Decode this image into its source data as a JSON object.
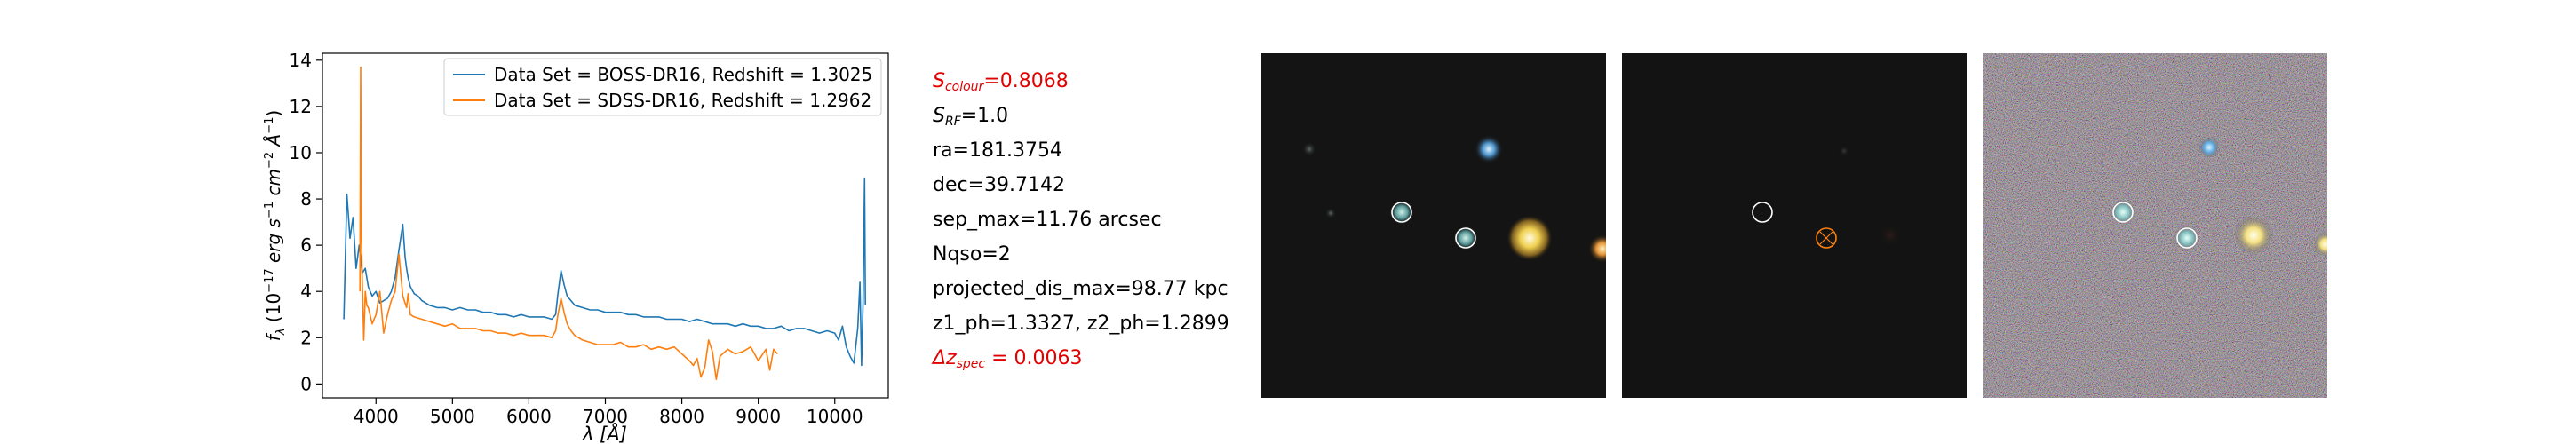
{
  "chart_data": {
    "type": "line",
    "title": "",
    "xlabel": "λ [Å]",
    "ylabel": "f_λ (10^-17 erg s^-1 cm^-2 Å^-1)",
    "xlim": [
      3300,
      10700
    ],
    "ylim": [
      -0.6,
      14.3
    ],
    "xticks": [
      4000,
      5000,
      6000,
      7000,
      8000,
      9000,
      10000
    ],
    "yticks": [
      0,
      2,
      4,
      6,
      8,
      10,
      12,
      14
    ],
    "legend_position": "top-right",
    "series": [
      {
        "name": "Data Set = BOSS-DR16, Redshift = 1.3025",
        "color": "#1f77b4",
        "x": [
          3580,
          3620,
          3660,
          3700,
          3740,
          3780,
          3820,
          3860,
          3900,
          3950,
          4000,
          4050,
          4100,
          4150,
          4200,
          4250,
          4300,
          4350,
          4380,
          4400,
          4420,
          4450,
          4500,
          4550,
          4600,
          4650,
          4700,
          4800,
          4900,
          5000,
          5100,
          5200,
          5300,
          5400,
          5500,
          5600,
          5700,
          5800,
          5900,
          6000,
          6100,
          6200,
          6300,
          6350,
          6380,
          6420,
          6460,
          6500,
          6550,
          6600,
          6700,
          6800,
          6900,
          7000,
          7100,
          7200,
          7300,
          7400,
          7500,
          7600,
          7700,
          7800,
          7900,
          8000,
          8100,
          8200,
          8300,
          8400,
          8500,
          8600,
          8700,
          8800,
          8900,
          9000,
          9100,
          9200,
          9300,
          9400,
          9500,
          9600,
          9700,
          9800,
          9900,
          10000,
          10050,
          10100,
          10150,
          10200,
          10250,
          10300,
          10330,
          10350,
          10370,
          10390,
          10400
        ],
        "y": [
          2.8,
          8.2,
          6.3,
          7.2,
          5.0,
          6.0,
          4.8,
          5.0,
          4.2,
          3.8,
          4.0,
          3.5,
          3.6,
          3.7,
          4.0,
          4.6,
          5.8,
          6.9,
          5.5,
          5.0,
          4.6,
          4.2,
          3.9,
          3.8,
          3.6,
          3.5,
          3.4,
          3.3,
          3.3,
          3.2,
          3.3,
          3.2,
          3.2,
          3.1,
          3.1,
          3.0,
          3.0,
          2.9,
          3.0,
          2.9,
          2.9,
          2.9,
          2.8,
          3.0,
          3.9,
          4.9,
          4.3,
          3.8,
          3.6,
          3.4,
          3.3,
          3.2,
          3.2,
          3.1,
          3.1,
          3.1,
          3.0,
          3.0,
          2.9,
          2.9,
          2.9,
          2.8,
          2.8,
          2.8,
          2.7,
          2.8,
          2.7,
          2.6,
          2.6,
          2.6,
          2.5,
          2.6,
          2.5,
          2.5,
          2.4,
          2.4,
          2.5,
          2.3,
          2.4,
          2.4,
          2.3,
          2.2,
          2.3,
          2.2,
          1.9,
          2.5,
          1.6,
          1.2,
          0.9,
          2.4,
          4.4,
          0.8,
          3.5,
          8.9,
          3.4
        ]
      },
      {
        "name": "Data Set = SDSS-DR16, Redshift = 1.2962",
        "color": "#ff7f0e",
        "x": [
          3790,
          3800,
          3810,
          3820,
          3840,
          3860,
          3880,
          3900,
          3950,
          4000,
          4050,
          4100,
          4150,
          4200,
          4250,
          4300,
          4350,
          4400,
          4420,
          4450,
          4500,
          4600,
          4700,
          4800,
          4900,
          5000,
          5100,
          5200,
          5300,
          5400,
          5500,
          5600,
          5700,
          5800,
          5900,
          6000,
          6100,
          6200,
          6300,
          6350,
          6380,
          6420,
          6460,
          6500,
          6550,
          6600,
          6700,
          6800,
          6900,
          7000,
          7100,
          7200,
          7300,
          7400,
          7500,
          7600,
          7700,
          7800,
          7900,
          8000,
          8100,
          8150,
          8200,
          8250,
          8300,
          8350,
          8400,
          8450,
          8500,
          8600,
          8700,
          8800,
          8900,
          9000,
          9100,
          9150,
          9200,
          9250
        ],
        "y": [
          4.0,
          13.7,
          6.5,
          4.5,
          1.9,
          4.0,
          3.4,
          3.3,
          2.6,
          3.0,
          4.0,
          2.2,
          3.0,
          3.6,
          4.0,
          5.6,
          3.8,
          3.3,
          3.9,
          3.0,
          2.9,
          2.8,
          2.7,
          2.6,
          2.5,
          2.6,
          2.4,
          2.4,
          2.4,
          2.3,
          2.3,
          2.2,
          2.2,
          2.1,
          2.2,
          2.1,
          2.1,
          2.1,
          2.0,
          2.3,
          3.0,
          3.7,
          3.1,
          2.6,
          2.3,
          2.1,
          1.9,
          1.8,
          1.7,
          1.7,
          1.7,
          1.8,
          1.6,
          1.6,
          1.7,
          1.5,
          1.6,
          1.5,
          1.6,
          1.3,
          1.0,
          0.8,
          1.1,
          0.3,
          0.7,
          1.9,
          1.4,
          0.2,
          1.2,
          1.5,
          1.3,
          1.4,
          1.6,
          1.0,
          1.5,
          0.6,
          1.5,
          1.3
        ]
      }
    ]
  },
  "info": {
    "s_colour": {
      "symbol": "S",
      "sub": "colour",
      "value": "=0.8068"
    },
    "s_rf": {
      "symbol": "S",
      "sub": "RF",
      "value": "=1.0"
    },
    "ra": "ra=181.3754",
    "dec": "dec=39.7142",
    "sep_max": "sep_max=11.76 arcsec",
    "nqso": "Nqso=2",
    "projected_dis_max": "projected_dis_max=98.77 kpc",
    "z_ph": "z1_ph=1.3327, z2_ph=1.2899",
    "dz_spec": {
      "symbol": "Δz",
      "sub": "spec",
      "value": " = 0.0063"
    }
  },
  "colors": {
    "highlight_red": "#e00000",
    "marker_white": "#ffffff",
    "marker_orange": "#ff7f0e"
  }
}
